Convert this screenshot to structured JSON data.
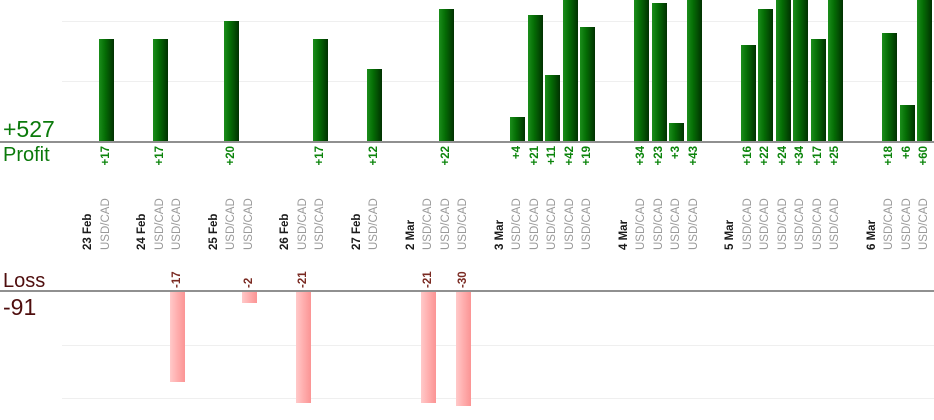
{
  "chart_data": {
    "type": "bar",
    "totals": {
      "profit": "+527",
      "profit_caption": "Profit",
      "loss": "-91",
      "loss_caption": "Loss"
    },
    "symbol": "USD/CAD",
    "groups": [
      {
        "date": "23 Feb",
        "trades": [
          17
        ]
      },
      {
        "date": "24 Feb",
        "trades": [
          17,
          -17
        ]
      },
      {
        "date": "25 Feb",
        "trades": [
          20,
          -2
        ]
      },
      {
        "date": "26 Feb",
        "trades": [
          -21,
          17
        ]
      },
      {
        "date": "27 Feb",
        "trades": [
          12
        ]
      },
      {
        "date": "2 Mar",
        "trades": [
          -21,
          22,
          -30
        ]
      },
      {
        "date": "3 Mar",
        "trades": [
          4,
          21,
          11,
          42,
          19
        ]
      },
      {
        "date": "4 Mar",
        "trades": [
          34,
          23,
          3,
          43
        ]
      },
      {
        "date": "5 Mar",
        "trades": [
          16,
          22,
          24,
          34,
          17,
          25
        ]
      },
      {
        "date": "6 Mar",
        "trades": [
          18,
          6,
          60
        ]
      }
    ],
    "axes": {
      "profit_gridline_values": [
        10,
        20
      ],
      "loss_gridline_values": [
        -10,
        -20
      ],
      "gridline_step": 10,
      "grid": true,
      "value_labels_rotated": true,
      "profit_clipped_above": 23,
      "loss_clipped_below": -21
    },
    "colors": {
      "profit_text": "#0b7a0b",
      "profit_value_text": "#0b840b",
      "loss_text": "#4f0e0e",
      "loss_value_text": "#7a2a22",
      "symbol_text": "#999999",
      "date_text": "#1a1a1a",
      "profit_bar_left": "#1b8e1b",
      "profit_bar_mid": "#056e05",
      "profit_bar_right": "#013101",
      "loss_bar_left": "#ffcaca",
      "loss_bar_mid": "#ffb0b0",
      "loss_bar_right": "#fb9494",
      "axis_line": "#909090",
      "gridline": "#efefef"
    }
  }
}
